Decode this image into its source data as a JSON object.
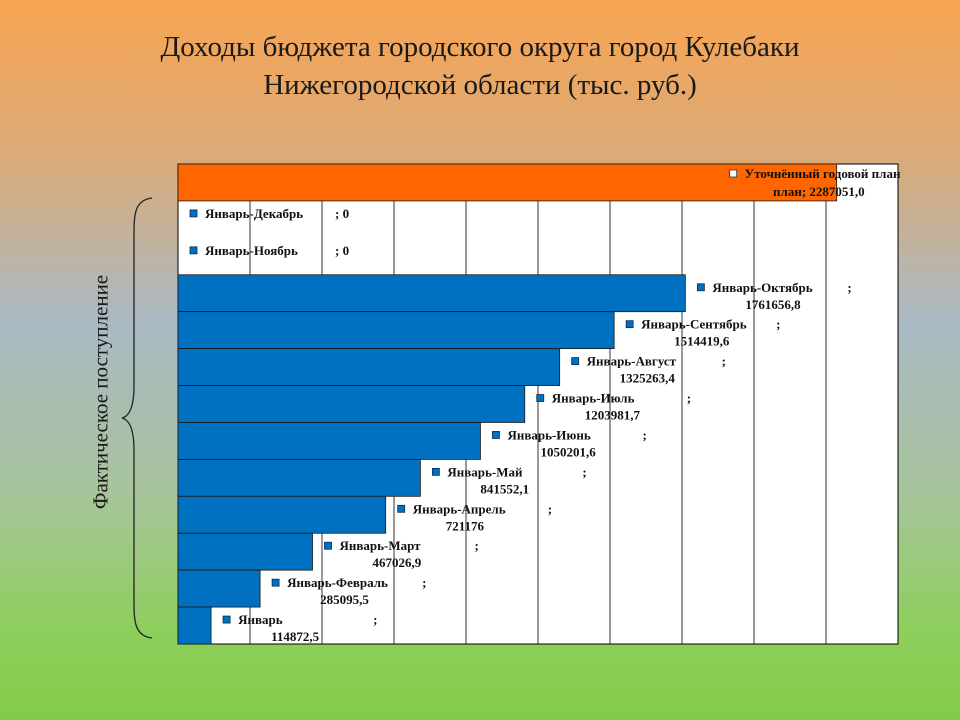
{
  "title_lines": [
    "Доходы бюджета городского округа город Кулебаки",
    "Нижегородской области (тыс. руб.)"
  ],
  "side_label": "Фактическое поступление",
  "colors": {
    "plan": "#ff6600",
    "actual": "#0070c0"
  },
  "chart_data": {
    "type": "bar",
    "orientation": "horizontal",
    "xlim": [
      0,
      2500000
    ],
    "grid": true,
    "rows": [
      {
        "name": "Уточнённый годовой план",
        "value": 2287051.0,
        "value_label": "2287051,0",
        "kind": "plan"
      },
      {
        "name": "Январь-Декабрь",
        "value": 0,
        "value_label": "0",
        "kind": "actual"
      },
      {
        "name": "Январь-Ноябрь",
        "value": 0,
        "value_label": "0",
        "kind": "actual"
      },
      {
        "name": "Январь-Октябрь",
        "value": 1761656.8,
        "value_label": "1761656,8",
        "kind": "actual"
      },
      {
        "name": "Январь-Сентябрь",
        "value": 1514419.6,
        "value_label": "1514419,6",
        "kind": "actual"
      },
      {
        "name": "Январь-Август",
        "value": 1325263.4,
        "value_label": "1325263,4",
        "kind": "actual"
      },
      {
        "name": "Январь-Июль",
        "value": 1203981.7,
        "value_label": "1203981,7",
        "kind": "actual"
      },
      {
        "name": "Январь-Июнь",
        "value": 1050201.6,
        "value_label": "1050201,6",
        "kind": "actual"
      },
      {
        "name": "Январь-Май",
        "value": 841552.1,
        "value_label": "841552,1",
        "kind": "actual"
      },
      {
        "name": "Январь-Апрель",
        "value": 721176,
        "value_label": "721176",
        "kind": "actual"
      },
      {
        "name": "Январь-Март",
        "value": 467026.9,
        "value_label": "467026,9",
        "kind": "actual"
      },
      {
        "name": "Январь-Февраль",
        "value": 285095.5,
        "value_label": "285095,5",
        "kind": "actual"
      },
      {
        "name": "Январь",
        "value": 114872.5,
        "value_label": "114872,5",
        "kind": "actual"
      }
    ]
  }
}
